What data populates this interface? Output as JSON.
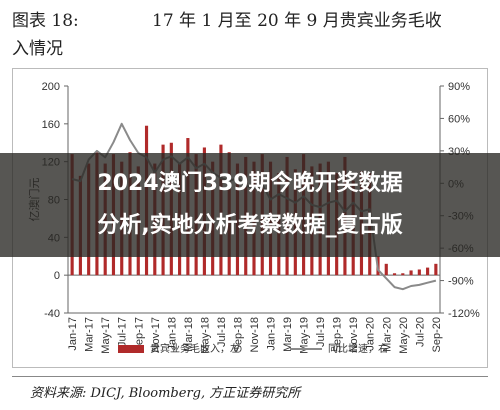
{
  "header": {
    "figure_label": "图表 18:",
    "title_line1": "17 年 1 月至 20 年 9 月贵宾业务毛收",
    "title_line2": "入情况"
  },
  "chart_data": {
    "type": "bar",
    "categories": [
      "Jan-17",
      "Feb-17",
      "Mar-17",
      "Apr-17",
      "May-17",
      "Jun-17",
      "Jul-17",
      "Aug-17",
      "Sep-17",
      "Oct-17",
      "Nov-17",
      "Dec-17",
      "Jan-18",
      "Feb-18",
      "Mar-18",
      "Apr-18",
      "May-18",
      "Jun-18",
      "Jul-18",
      "Aug-18",
      "Sep-18",
      "Oct-18",
      "Nov-18",
      "Dec-18",
      "Jan-19",
      "Feb-19",
      "Mar-19",
      "Apr-19",
      "May-19",
      "Jun-19",
      "Jul-19",
      "Aug-19",
      "Sep-19",
      "Oct-19",
      "Nov-19",
      "Dec-19",
      "Jan-20",
      "Feb-20",
      "Mar-20",
      "Apr-20",
      "May-20",
      "Jun-20",
      "Jul-20",
      "Aug-20",
      "Sep-20"
    ],
    "tick_labels": [
      "Jan-17",
      "Mar-17",
      "May-17",
      "Jul-17",
      "Sep-17",
      "Nov-17",
      "Jan-18",
      "Mar-18",
      "May-18",
      "Jul-18",
      "Sep-18",
      "Nov-18",
      "Jan-19",
      "Mar-19",
      "May-19",
      "Jul-19",
      "Sep-19",
      "Nov-19",
      "Jan-20",
      "Mar-20",
      "May-20",
      "Jul-20",
      "Sep-20"
    ],
    "series": [
      {
        "name": "贵宾业务毛收入，左",
        "kind": "bar",
        "axis": "left",
        "color": "#b02a2a",
        "values": [
          128,
          105,
          118,
          130,
          118,
          128,
          120,
          130,
          115,
          158,
          118,
          138,
          140,
          118,
          145,
          128,
          135,
          120,
          138,
          130,
          118,
          125,
          120,
          128,
          120,
          108,
          125,
          112,
          128,
          115,
          118,
          120,
          108,
          125,
          100,
          110,
          108,
          20,
          12,
          2,
          2,
          5,
          6,
          8,
          12
        ]
      },
      {
        "name": "同比增速，右",
        "kind": "line",
        "axis": "right",
        "color": "#8a8a8a",
        "values": [
          4,
          2,
          22,
          30,
          24,
          38,
          55,
          40,
          28,
          24,
          10,
          22,
          25,
          18,
          24,
          14,
          18,
          10,
          5,
          2,
          5,
          -2,
          -5,
          -1,
          -15,
          -10,
          -14,
          -18,
          -12,
          -20,
          -22,
          -18,
          -16,
          -26,
          -18,
          -26,
          -24,
          -80,
          -88,
          -96,
          -98,
          -95,
          -94,
          -92,
          -90
        ]
      }
    ],
    "y_left": {
      "ticks": [
        "200",
        "160",
        "120",
        "80",
        "40",
        "0",
        "-40"
      ],
      "range": [
        -40,
        200
      ],
      "label": "亿澳门元"
    },
    "y_right": {
      "ticks": [
        "90%",
        "60%",
        "30%",
        "0%",
        "-30%",
        "-60%",
        "-90%",
        "-120%"
      ],
      "range": [
        -120,
        90
      ]
    },
    "grid": false,
    "legend_position": "bottom"
  },
  "source": "资料来源: DICJ, Bloomberg, 方正证券研究所",
  "overlay": {
    "line1": "2024澳门339期今晚开奖数据",
    "line2": "分析,实地分析考察数据_复古版"
  }
}
